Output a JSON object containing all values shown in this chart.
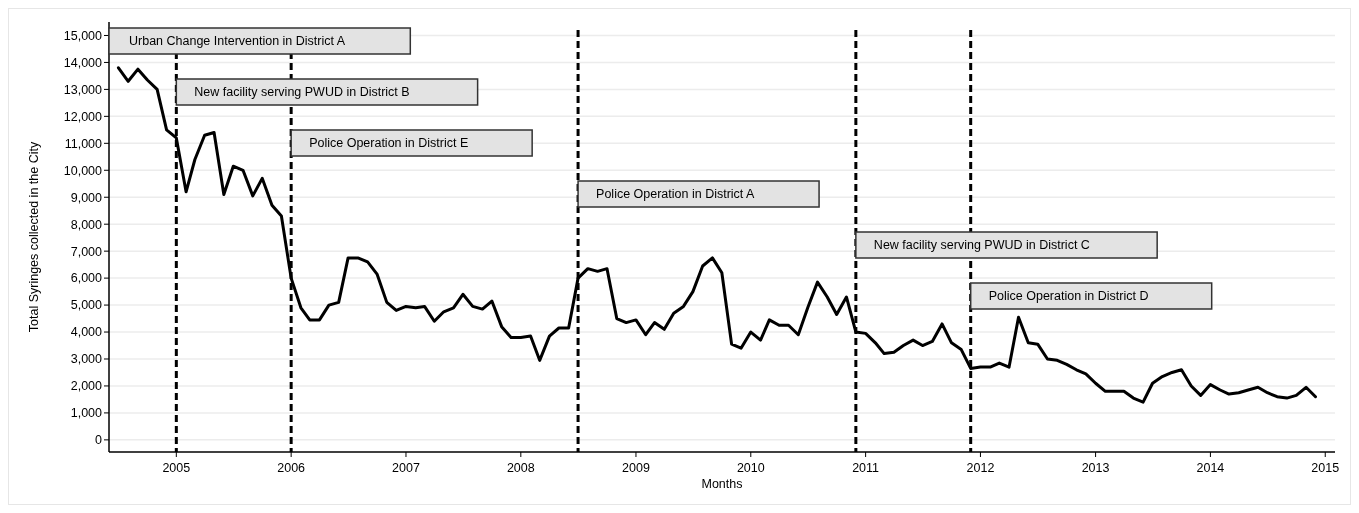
{
  "chart_data": {
    "type": "line",
    "xlabel": "Months",
    "ylabel": "Total Syringes collected in the City",
    "x": [
      "2004-07",
      "2004-08",
      "2004-09",
      "2004-10",
      "2004-11",
      "2004-12",
      "2005-01",
      "2005-02",
      "2005-03",
      "2005-04",
      "2005-05",
      "2005-06",
      "2005-07",
      "2005-08",
      "2005-09",
      "2005-10",
      "2005-11",
      "2005-12",
      "2006-01",
      "2006-02",
      "2006-03",
      "2006-04",
      "2006-05",
      "2006-06",
      "2006-07",
      "2006-08",
      "2006-09",
      "2006-10",
      "2006-11",
      "2006-12",
      "2007-01",
      "2007-02",
      "2007-03",
      "2007-04",
      "2007-05",
      "2007-06",
      "2007-07",
      "2007-08",
      "2007-09",
      "2007-10",
      "2007-11",
      "2007-12",
      "2008-01",
      "2008-02",
      "2008-03",
      "2008-04",
      "2008-05",
      "2008-06",
      "2008-07",
      "2008-08",
      "2008-09",
      "2008-10",
      "2008-11",
      "2008-12",
      "2009-01",
      "2009-02",
      "2009-03",
      "2009-04",
      "2009-05",
      "2009-06",
      "2009-07",
      "2009-08",
      "2009-09",
      "2009-10",
      "2009-11",
      "2009-12",
      "2010-01",
      "2010-02",
      "2010-03",
      "2010-04",
      "2010-05",
      "2010-06",
      "2010-07",
      "2010-08",
      "2010-09",
      "2010-10",
      "2010-11",
      "2010-12",
      "2011-01",
      "2011-02",
      "2011-03",
      "2011-04",
      "2011-05",
      "2011-06",
      "2011-07",
      "2011-08",
      "2011-09",
      "2011-10",
      "2011-11",
      "2011-12",
      "2012-01",
      "2012-02",
      "2012-03",
      "2012-04",
      "2012-05",
      "2012-06",
      "2012-07",
      "2012-08",
      "2012-09",
      "2012-10",
      "2012-11",
      "2012-12",
      "2013-01",
      "2013-02",
      "2013-03",
      "2013-04",
      "2013-05",
      "2013-06",
      "2013-07",
      "2013-08",
      "2013-09",
      "2013-10",
      "2013-11",
      "2013-12",
      "2014-01",
      "2014-02",
      "2014-03",
      "2014-04",
      "2014-05",
      "2014-06",
      "2014-07",
      "2014-08",
      "2014-09",
      "2014-10",
      "2014-11",
      "2014-12"
    ],
    "series": [
      {
        "color": "#000000",
        "values": [
          13800,
          13300,
          13750,
          13350,
          13000,
          11500,
          11200,
          9200,
          10400,
          11300,
          11400,
          9100,
          10150,
          10000,
          9050,
          9700,
          8700,
          8300,
          6000,
          4900,
          4450,
          4450,
          5000,
          5100,
          6750,
          6750,
          6600,
          6150,
          5100,
          4800,
          4950,
          4900,
          4950,
          4400,
          4750,
          4900,
          5400,
          4950,
          4850,
          5150,
          4200,
          3800,
          3800,
          3850,
          2950,
          3850,
          4150,
          4150,
          6000,
          6350,
          6250,
          6350,
          4500,
          4350,
          4450,
          3900,
          4350,
          4100,
          4700,
          4950,
          5500,
          6450,
          6750,
          6200,
          3550,
          3400,
          4000,
          3700,
          4450,
          4250,
          4250,
          3900,
          4900,
          5850,
          5300,
          4650,
          5300,
          4000,
          3950,
          3600,
          3200,
          3250,
          3500,
          3700,
          3500,
          3650,
          4300,
          3600,
          3350,
          2650,
          2700,
          2700,
          2850,
          2700,
          4550,
          3600,
          3550,
          3000,
          2950,
          2800,
          2600,
          2450,
          2100,
          1800,
          1800,
          1800,
          1550,
          1400,
          2100,
          2350,
          2500,
          2600,
          2000,
          1650,
          2050,
          1850,
          1700,
          1750,
          1850,
          1950,
          1750,
          1600,
          1550,
          1650,
          1950,
          1600
        ]
      }
    ],
    "xlim": [
      "2004-06",
      "2015-02"
    ],
    "xticks": [
      "2005",
      "2006",
      "2007",
      "2008",
      "2009",
      "2010",
      "2011",
      "2012",
      "2013",
      "2014",
      "2015"
    ],
    "ylim": [
      -450,
      15500
    ],
    "yticks": [
      0,
      {
        "value": 1000,
        "label": "1,000"
      },
      {
        "value": 2000,
        "label": "2,000"
      },
      {
        "value": 3000,
        "label": "3,000"
      },
      {
        "value": 4000,
        "label": "4,000"
      },
      {
        "value": 5000,
        "label": "5,000"
      },
      {
        "value": 6000,
        "label": "6,000"
      },
      {
        "value": 7000,
        "label": "7,000"
      },
      {
        "value": 8000,
        "label": "8,000"
      },
      {
        "value": 9000,
        "label": "9,000"
      },
      {
        "value": 10000,
        "label": "10,000"
      },
      {
        "value": 11000,
        "label": "11,000"
      },
      {
        "value": 12000,
        "label": "12,000"
      },
      {
        "value": 13000,
        "label": "13,000"
      },
      {
        "value": 14000,
        "label": "14,000"
      },
      {
        "value": 15000,
        "label": "15,000"
      }
    ],
    "grid": "y",
    "marker": "none",
    "line_style": "solid",
    "ref_lines": [
      {
        "axis": "x",
        "value": "2005-01",
        "label": "New facility serving PWUD in District B",
        "color": "#000000",
        "line_style": "dashed"
      },
      {
        "axis": "x",
        "value": "2006-01",
        "label": "Police Operation in District E",
        "color": "#000000",
        "line_style": "dashed"
      },
      {
        "axis": "x",
        "value": "2008-07",
        "label": "Police Operation in District A",
        "color": "#000000",
        "line_style": "dashed"
      },
      {
        "axis": "x",
        "value": "2010-12",
        "label": "New facility serving PWUD in District C",
        "color": "#000000",
        "line_style": "dashed"
      },
      {
        "axis": "x",
        "value": "2011-12",
        "label": "Police Operation in District D",
        "color": "#000000",
        "line_style": "dashed"
      }
    ],
    "annotations": [
      "Urban Change Intervention in District A"
    ]
  }
}
